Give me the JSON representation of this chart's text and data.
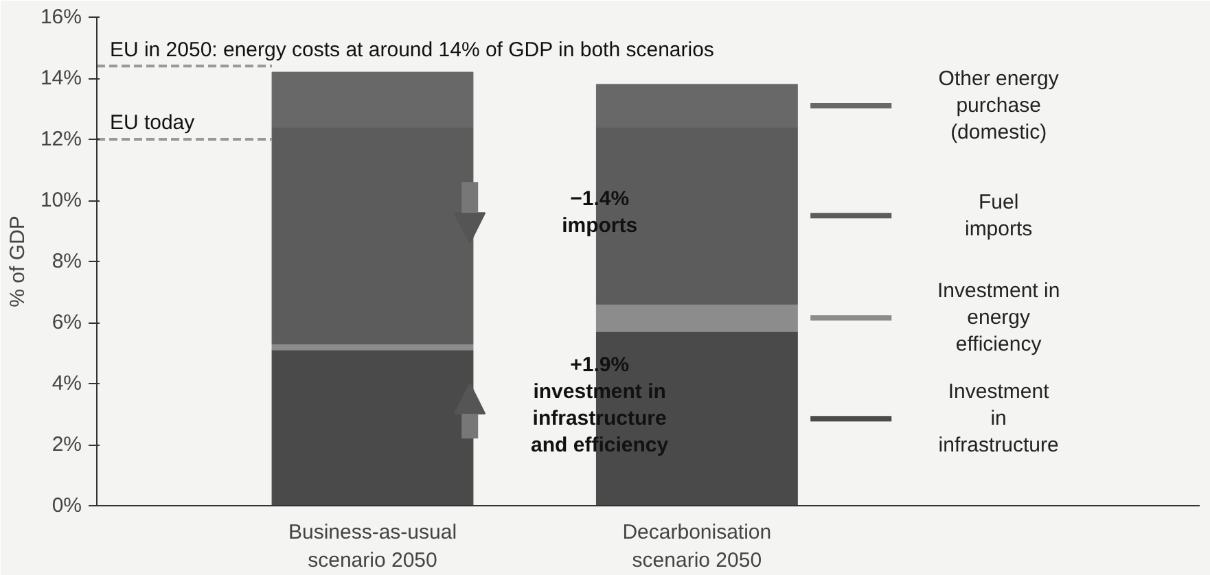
{
  "chart_data": {
    "type": "bar",
    "stacked": true,
    "ylabel": "% of GDP",
    "categories": [
      "Business-as-usual\nscenario 2050",
      "Decarbonisation\nscenario 2050"
    ],
    "series": [
      {
        "name": "Investment\nin\ninfrastructure",
        "color": "#4a4a4a",
        "values": [
          5.1,
          5.7
        ]
      },
      {
        "name": "Investment in\nenergy\nefficiency",
        "color": "#8c8c8c",
        "values": [
          0.2,
          0.9
        ]
      },
      {
        "name": "Fuel\nimports",
        "color": "#5c5c5c",
        "values": [
          7.1,
          5.8
        ]
      },
      {
        "name": "Other energy\npurchase\n(domestic)",
        "color": "#686868",
        "values": [
          1.8,
          1.4
        ]
      }
    ],
    "ylim": [
      0,
      16
    ],
    "yticks": [
      {
        "value": 0,
        "label": "0%"
      },
      {
        "value": 2,
        "label": "2%"
      },
      {
        "value": 4,
        "label": "4%"
      },
      {
        "value": 6,
        "label": "6%"
      },
      {
        "value": 8,
        "label": "8%"
      },
      {
        "value": 10,
        "label": "10%"
      },
      {
        "value": 12,
        "label": "12%"
      },
      {
        "value": 14,
        "label": "14%"
      },
      {
        "value": 16,
        "label": "16%"
      }
    ],
    "ref_lines": [
      {
        "axis": "y",
        "value": 14.4,
        "label": "EU in 2050: energy costs at around 14% of GDP in both scenarios",
        "color": "#999999",
        "line_style": "dashed"
      },
      {
        "axis": "y",
        "value": 12,
        "label": "EU today",
        "color": "#999999",
        "line_style": "dashed"
      }
    ],
    "annotations": [
      "−1.4%\nimports",
      "+1.9%\ninvestment in\ninfrastructure\nand efficiency"
    ],
    "grid": false,
    "legend": "right"
  }
}
